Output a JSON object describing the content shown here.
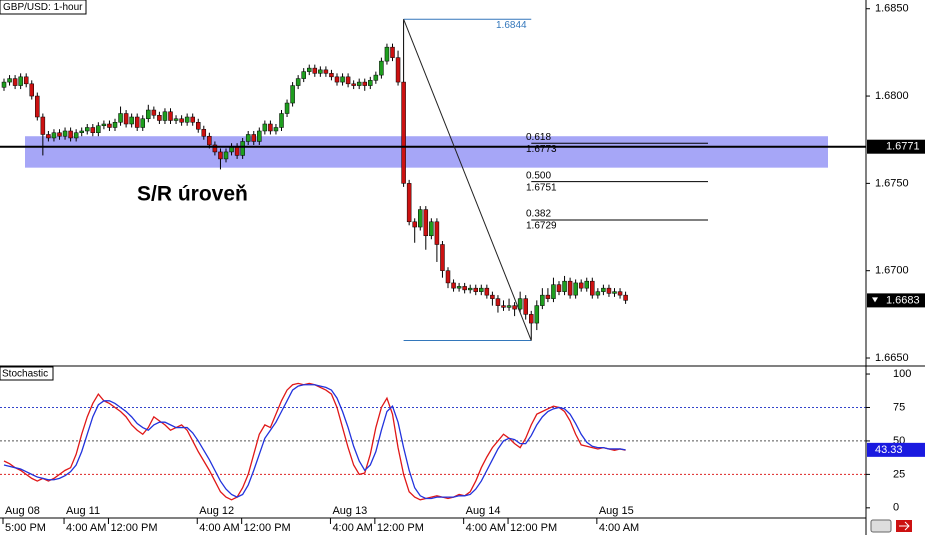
{
  "chart_data": [
    {
      "type": "candlestick",
      "title": "GBP/USD: 1-hour",
      "up_color": "#1f9e1f",
      "down_color": "#cc1111",
      "ylim": [
        1.6646,
        1.6855
      ],
      "yticks": [
        {
          "value": 1.685,
          "label": "1.6850"
        },
        {
          "value": 1.68,
          "label": "1.6800"
        },
        {
          "value": 1.675,
          "label": "1.6750"
        },
        {
          "value": 1.67,
          "label": "1.6700"
        },
        {
          "value": 1.665,
          "label": "1.6650"
        }
      ],
      "x_labels": {
        "dates": [
          "Aug 08",
          "Aug 11",
          "Aug 12",
          "Aug 13",
          "Aug 14",
          "Aug 15"
        ],
        "times": [
          "5:00 PM",
          "4:00 AM",
          "12:00 PM",
          "4:00 AM",
          "12:00 PM",
          "4:00 AM",
          "12:00 PM",
          "4:00 AM",
          "12:00 PM",
          "4:00 AM"
        ]
      },
      "sr_zone": [
        1.6759,
        1.6777
      ],
      "sr_level": 1.6771,
      "annotation": "S/R úroveň",
      "last_price": 1.6683,
      "fibonacci": {
        "high": 1.6844,
        "low": 1.666,
        "levels": [
          {
            "ratio": 0.618,
            "price": 1.6773
          },
          {
            "ratio": {
              "value": 0.5,
              "label": "0.500"
            },
            "price": 1.6751
          },
          {
            "ratio": 0.382,
            "price": 1.6729
          }
        ]
      },
      "candles": [
        [
          1.6805,
          1.681,
          1.6803,
          1.6808
        ],
        [
          1.6808,
          1.6812,
          1.6806,
          1.681
        ],
        [
          1.681,
          1.6812,
          1.6804,
          1.6806
        ],
        [
          1.6806,
          1.6813,
          1.6804,
          1.6811
        ],
        [
          1.6811,
          1.6813,
          1.6805,
          1.6807
        ],
        [
          1.6807,
          1.6809,
          1.6798,
          1.68
        ],
        [
          1.68,
          1.6802,
          1.6786,
          1.6788
        ],
        [
          1.6788,
          1.679,
          1.6766,
          1.6778
        ],
        [
          1.6778,
          1.678,
          1.6774,
          1.6776
        ],
        [
          1.6776,
          1.6781,
          1.6774,
          1.6779
        ],
        [
          1.6779,
          1.6781,
          1.6775,
          1.6777
        ],
        [
          1.6777,
          1.6782,
          1.6775,
          1.678
        ],
        [
          1.678,
          1.6782,
          1.6774,
          1.6776
        ],
        [
          1.6776,
          1.6781,
          1.6774,
          1.6779
        ],
        [
          1.6779,
          1.6782,
          1.6777,
          1.678
        ],
        [
          1.678,
          1.6784,
          1.6778,
          1.6782
        ],
        [
          1.6782,
          1.6784,
          1.6777,
          1.6779
        ],
        [
          1.6779,
          1.6785,
          1.6777,
          1.6783
        ],
        [
          1.6783,
          1.6786,
          1.6781,
          1.6784
        ],
        [
          1.6784,
          1.6786,
          1.678,
          1.6782
        ],
        [
          1.6782,
          1.6787,
          1.678,
          1.6785
        ],
        [
          1.6785,
          1.6794,
          1.6783,
          1.679
        ],
        [
          1.679,
          1.6792,
          1.6782,
          1.6784
        ],
        [
          1.6784,
          1.679,
          1.6782,
          1.6788
        ],
        [
          1.6788,
          1.679,
          1.678,
          1.6782
        ],
        [
          1.6782,
          1.6789,
          1.678,
          1.6787
        ],
        [
          1.6787,
          1.6795,
          1.6785,
          1.6792
        ],
        [
          1.6792,
          1.6794,
          1.6787,
          1.6789
        ],
        [
          1.6789,
          1.6791,
          1.6784,
          1.6786
        ],
        [
          1.6786,
          1.6793,
          1.6784,
          1.6791
        ],
        [
          1.6791,
          1.6793,
          1.6784,
          1.6786
        ],
        [
          1.6786,
          1.6789,
          1.6784,
          1.6787
        ],
        [
          1.6787,
          1.6789,
          1.6783,
          1.6785
        ],
        [
          1.6785,
          1.679,
          1.6783,
          1.6788
        ],
        [
          1.6788,
          1.679,
          1.6783,
          1.6785
        ],
        [
          1.6785,
          1.6787,
          1.6779,
          1.6781
        ],
        [
          1.6781,
          1.6783,
          1.6775,
          1.6777
        ],
        [
          1.6777,
          1.6779,
          1.677,
          1.6772
        ],
        [
          1.6772,
          1.6774,
          1.6766,
          1.6768
        ],
        [
          1.6768,
          1.677,
          1.6758,
          1.6764
        ],
        [
          1.6764,
          1.677,
          1.6762,
          1.6768
        ],
        [
          1.6768,
          1.6773,
          1.6766,
          1.6771
        ],
        [
          1.6771,
          1.6773,
          1.6764,
          1.6766
        ],
        [
          1.6766,
          1.6776,
          1.6764,
          1.6774
        ],
        [
          1.6774,
          1.678,
          1.6772,
          1.6778
        ],
        [
          1.6778,
          1.678,
          1.6772,
          1.6774
        ],
        [
          1.6774,
          1.6782,
          1.6772,
          1.678
        ],
        [
          1.678,
          1.6786,
          1.6778,
          1.6784
        ],
        [
          1.6784,
          1.6786,
          1.6778,
          1.678
        ],
        [
          1.678,
          1.6784,
          1.6778,
          1.6782
        ],
        [
          1.6782,
          1.6792,
          1.678,
          1.679
        ],
        [
          1.679,
          1.6798,
          1.6788,
          1.6796
        ],
        [
          1.6796,
          1.6808,
          1.6794,
          1.6806
        ],
        [
          1.6806,
          1.6812,
          1.6804,
          1.681
        ],
        [
          1.681,
          1.6816,
          1.6808,
          1.6814
        ],
        [
          1.6814,
          1.6818,
          1.6812,
          1.6816
        ],
        [
          1.6816,
          1.6818,
          1.6811,
          1.6813
        ],
        [
          1.6813,
          1.6817,
          1.6811,
          1.6815
        ],
        [
          1.6815,
          1.6817,
          1.6811,
          1.6813
        ],
        [
          1.6813,
          1.6815,
          1.6809,
          1.6811
        ],
        [
          1.6811,
          1.6813,
          1.6806,
          1.6808
        ],
        [
          1.6808,
          1.6813,
          1.6806,
          1.6811
        ],
        [
          1.6811,
          1.6813,
          1.6805,
          1.6807
        ],
        [
          1.6807,
          1.6809,
          1.6804,
          1.6806
        ],
        [
          1.6806,
          1.681,
          1.6804,
          1.6808
        ],
        [
          1.6808,
          1.681,
          1.6803,
          1.6806
        ],
        [
          1.6806,
          1.6811,
          1.6804,
          1.6809
        ],
        [
          1.6809,
          1.6814,
          1.6807,
          1.6812
        ],
        [
          1.6812,
          1.6822,
          1.681,
          1.682
        ],
        [
          1.682,
          1.683,
          1.6818,
          1.6828
        ],
        [
          1.6828,
          1.683,
          1.682,
          1.6822
        ],
        [
          1.6822,
          1.6826,
          1.6806,
          1.6808
        ],
        [
          1.6808,
          1.6844,
          1.6748,
          1.675
        ],
        [
          1.675,
          1.6752,
          1.6726,
          1.6728
        ],
        [
          1.6728,
          1.673,
          1.6716,
          1.6725
        ],
        [
          1.6725,
          1.6737,
          1.6723,
          1.6735
        ],
        [
          1.6735,
          1.6737,
          1.6712,
          1.672
        ],
        [
          1.672,
          1.673,
          1.6718,
          1.6728
        ],
        [
          1.6728,
          1.673,
          1.6705,
          1.6715
        ],
        [
          1.6715,
          1.6717,
          1.6696,
          1.67
        ],
        [
          1.67,
          1.6702,
          1.669,
          1.6693
        ],
        [
          1.6693,
          1.6695,
          1.6688,
          1.669
        ],
        [
          1.669,
          1.6693,
          1.6688,
          1.6691
        ],
        [
          1.6691,
          1.6693,
          1.6687,
          1.6689
        ],
        [
          1.6689,
          1.6692,
          1.6687,
          1.669
        ],
        [
          1.669,
          1.6692,
          1.6686,
          1.6688
        ],
        [
          1.6688,
          1.6692,
          1.6686,
          1.669
        ],
        [
          1.669,
          1.6692,
          1.6684,
          1.6686
        ],
        [
          1.6686,
          1.6688,
          1.668,
          1.6684
        ],
        [
          1.6684,
          1.6686,
          1.6676,
          1.668
        ],
        [
          1.668,
          1.6683,
          1.6677,
          1.6679
        ],
        [
          1.6679,
          1.6684,
          1.6677,
          1.668
        ],
        [
          1.668,
          1.6682,
          1.6674,
          1.6678
        ],
        [
          1.6678,
          1.6688,
          1.6676,
          1.6684
        ],
        [
          1.6684,
          1.6686,
          1.6672,
          1.6675
        ],
        [
          1.6675,
          1.6677,
          1.666,
          1.667
        ],
        [
          1.667,
          1.6683,
          1.6666,
          1.668
        ],
        [
          1.668,
          1.669,
          1.6678,
          1.6686
        ],
        [
          1.6686,
          1.669,
          1.6682,
          1.6684
        ],
        [
          1.6684,
          1.6696,
          1.6682,
          1.6692
        ],
        [
          1.6692,
          1.6694,
          1.6686,
          1.6688
        ],
        [
          1.6688,
          1.6697,
          1.6686,
          1.6694
        ],
        [
          1.6694,
          1.6696,
          1.6684,
          1.6686
        ],
        [
          1.6686,
          1.6695,
          1.6684,
          1.6693
        ],
        [
          1.6693,
          1.6695,
          1.6688,
          1.669
        ],
        [
          1.669,
          1.6696,
          1.6688,
          1.6694
        ],
        [
          1.6694,
          1.6696,
          1.6684,
          1.6686
        ],
        [
          1.6686,
          1.669,
          1.6684,
          1.6688
        ],
        [
          1.6688,
          1.6692,
          1.6686,
          1.669
        ],
        [
          1.669,
          1.6692,
          1.6685,
          1.6687
        ],
        [
          1.6687,
          1.669,
          1.6685,
          1.6688
        ],
        [
          1.6688,
          1.669,
          1.6684,
          1.6686
        ],
        [
          1.6686,
          1.6688,
          1.6681,
          1.6683
        ]
      ]
    },
    {
      "type": "line",
      "title": "Stochastic",
      "ylim": [
        -7.6,
        106
      ],
      "yticks": [
        0,
        25,
        50,
        75,
        100
      ],
      "levels": [
        {
          "value": 75,
          "color": "#3344cc"
        },
        {
          "value": 50,
          "color": "#555555"
        },
        {
          "value": 25,
          "color": "#dd2222"
        }
      ],
      "series": [
        {
          "color": "#e01818",
          "values": [
            35,
            33,
            30,
            28,
            25,
            22,
            20,
            22,
            20,
            22,
            25,
            28,
            30,
            40,
            55,
            68,
            78,
            85,
            80,
            78,
            75,
            72,
            68,
            62,
            58,
            55,
            60,
            68,
            65,
            62,
            58,
            60,
            62,
            58,
            50,
            42,
            35,
            28,
            20,
            12,
            8,
            6,
            8,
            15,
            25,
            40,
            55,
            62,
            60,
            70,
            80,
            88,
            92,
            93,
            92,
            93,
            92,
            90,
            88,
            85,
            75,
            60,
            45,
            32,
            25,
            26,
            40,
            60,
            75,
            82,
            70,
            45,
            25,
            12,
            8,
            6,
            7,
            8,
            9,
            8,
            7,
            8,
            10,
            9,
            12,
            20,
            30,
            38,
            45,
            50,
            55,
            52,
            48,
            45,
            52,
            62,
            70,
            72,
            74,
            76,
            75,
            72,
            65,
            55,
            47,
            46,
            45,
            44,
            45,
            44,
            43,
            44,
            43
          ]
        },
        {
          "color": "#2233dd",
          "values": [
            32,
            31,
            30,
            29,
            27,
            25,
            23,
            22,
            21,
            21,
            22,
            24,
            27,
            32,
            42,
            55,
            68,
            77,
            80,
            80,
            78,
            75,
            72,
            68,
            63,
            60,
            58,
            62,
            64,
            64,
            62,
            60,
            60,
            60,
            56,
            50,
            43,
            36,
            28,
            20,
            14,
            10,
            8,
            10,
            17,
            28,
            40,
            52,
            58,
            64,
            72,
            80,
            88,
            91,
            92,
            92,
            92,
            91,
            90,
            88,
            82,
            72,
            60,
            46,
            35,
            28,
            32,
            42,
            58,
            72,
            76,
            64,
            45,
            28,
            15,
            9,
            7,
            7,
            8,
            8,
            8,
            8,
            9,
            9,
            10,
            14,
            20,
            28,
            36,
            44,
            50,
            52,
            51,
            48,
            48,
            54,
            62,
            68,
            72,
            74,
            75,
            74,
            70,
            63,
            55,
            49,
            46,
            45,
            45,
            44,
            44,
            44,
            43.33
          ]
        }
      ]
    }
  ]
}
